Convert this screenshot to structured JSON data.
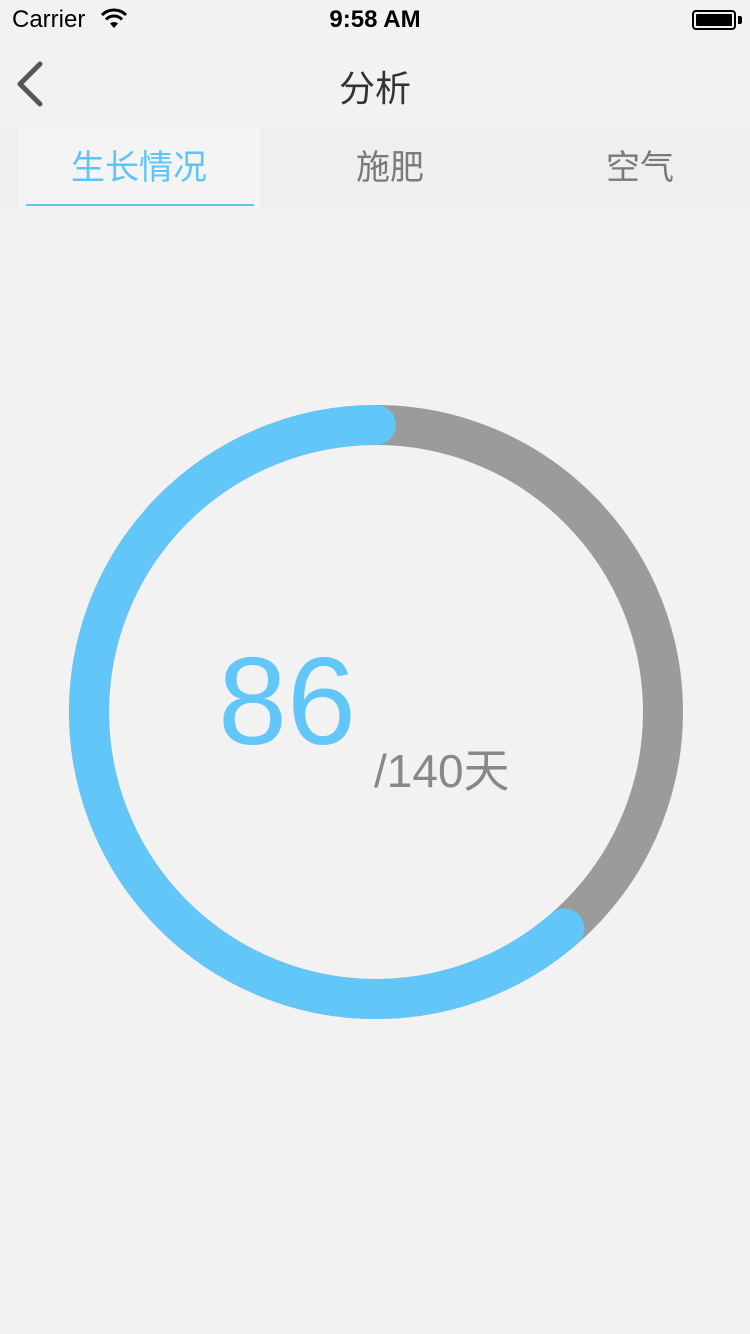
{
  "status_bar": {
    "carrier": "Carrier",
    "time": "9:58 AM"
  },
  "nav": {
    "title": "分析",
    "back_icon": "chevron-left-icon"
  },
  "tabs": [
    {
      "label": "生长情况",
      "active": true
    },
    {
      "label": "施肥",
      "active": false
    },
    {
      "label": "空气",
      "active": false
    }
  ],
  "growth": {
    "current": "86",
    "total_label": "/140天",
    "progress_fraction": 0.614
  },
  "colors": {
    "accent": "#62c6f8",
    "track": "#9b9b9b",
    "background": "#f2f2f2"
  }
}
